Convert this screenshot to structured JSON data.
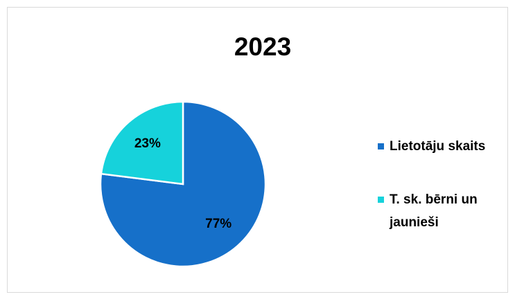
{
  "chart_data": {
    "type": "pie",
    "title": "2023",
    "categories": [
      "Lietotāju skaits",
      "T. sk. bērni un jaunieši"
    ],
    "values": [
      77,
      23
    ],
    "value_labels": [
      "77%",
      "23%"
    ],
    "colors": [
      "#1670c9",
      "#16d2db"
    ],
    "legend": "right"
  }
}
